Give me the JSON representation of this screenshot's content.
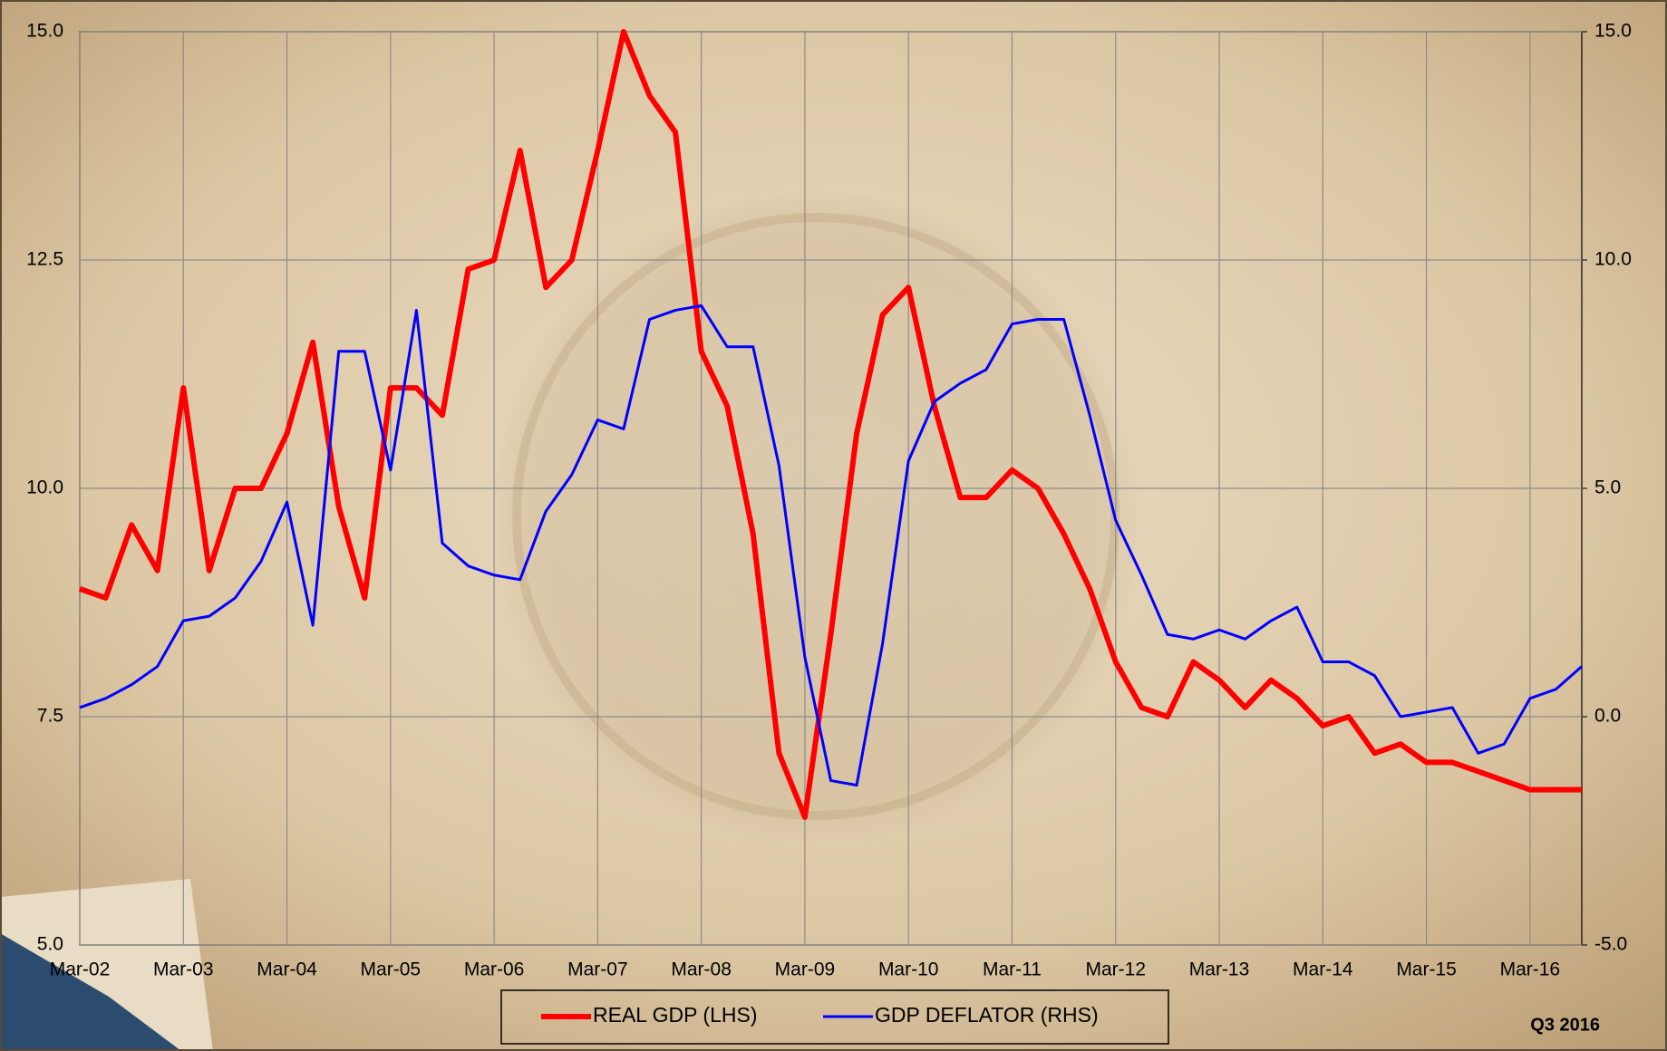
{
  "chart_data": {
    "type": "line",
    "categories": [
      "Mar-02",
      null,
      null,
      null,
      "Mar-03",
      null,
      null,
      null,
      "Mar-04",
      null,
      null,
      null,
      "Mar-05",
      null,
      null,
      null,
      "Mar-06",
      null,
      null,
      null,
      "Mar-07",
      null,
      null,
      null,
      "Mar-08",
      null,
      null,
      null,
      "Mar-09",
      null,
      null,
      null,
      "Mar-10",
      null,
      null,
      null,
      "Mar-11",
      null,
      null,
      null,
      "Mar-12",
      null,
      null,
      null,
      "Mar-13",
      null,
      null,
      null,
      "Mar-14",
      null,
      null,
      null,
      "Mar-15",
      null,
      null,
      null,
      "Mar-16",
      null,
      null
    ],
    "series": [
      {
        "name": "REAL GDP (LHS)",
        "color": "#ff0000",
        "axis": "y",
        "values": [
          8.9,
          8.8,
          9.6,
          9.1,
          11.1,
          9.1,
          10.0,
          10.0,
          10.6,
          11.6,
          9.8,
          8.8,
          11.1,
          11.1,
          10.8,
          12.4,
          12.5,
          13.7,
          12.2,
          12.5,
          13.7,
          15.0,
          14.3,
          13.9,
          11.5,
          10.9,
          9.5,
          7.1,
          6.4,
          8.4,
          10.6,
          11.9,
          12.2,
          10.9,
          9.9,
          9.9,
          10.2,
          10.0,
          9.5,
          8.9,
          8.1,
          7.6,
          7.5,
          8.1,
          7.9,
          7.6,
          7.9,
          7.7,
          7.4,
          7.5,
          7.1,
          7.2,
          7.0,
          7.0,
          6.9,
          6.8,
          6.7,
          6.7,
          6.7
        ]
      },
      {
        "name": "GDP DEFLATOR (RHS)",
        "color": "#0000ff",
        "axis": "y2",
        "values": [
          0.2,
          0.4,
          0.7,
          1.1,
          2.1,
          2.2,
          2.6,
          3.4,
          4.7,
          2.0,
          8.0,
          8.0,
          5.4,
          8.9,
          3.8,
          3.3,
          3.1,
          3.0,
          4.5,
          5.3,
          6.5,
          6.3,
          8.7,
          8.9,
          9.0,
          8.1,
          8.1,
          5.5,
          1.3,
          -1.4,
          -1.5,
          1.6,
          5.6,
          6.9,
          7.3,
          7.6,
          8.6,
          8.7,
          8.7,
          6.6,
          4.3,
          3.1,
          1.8,
          1.7,
          1.9,
          1.7,
          2.1,
          2.4,
          1.2,
          1.2,
          0.9,
          0.0,
          0.1,
          0.2,
          -0.8,
          -0.6,
          0.4,
          0.6,
          1.1
        ]
      }
    ],
    "ylim": [
      5,
      15
    ],
    "yticks": [
      {
        "value": 5,
        "label": "5.0"
      },
      {
        "value": 7.5,
        "label": "7.5"
      },
      {
        "value": 10,
        "label": "10.0"
      },
      {
        "value": 12.5,
        "label": "12.5"
      },
      {
        "value": 15,
        "label": "15.0"
      }
    ],
    "y2lim": [
      -5,
      15
    ],
    "y2ticks": [
      {
        "value": -5,
        "label": "-5.0"
      },
      {
        "value": 0,
        "label": "0.0"
      },
      {
        "value": 5,
        "label": "5.0"
      },
      {
        "value": 10,
        "label": "10.0"
      },
      {
        "value": 15,
        "label": "15.0"
      }
    ],
    "grid": true,
    "legend": "bottom",
    "annotation": "Q3 2016"
  }
}
